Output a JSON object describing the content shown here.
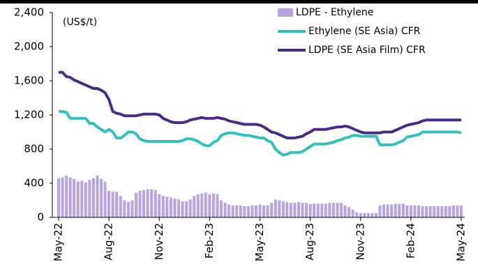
{
  "chart_data": {
    "type": "bar",
    "annotations": [
      "(US$/t)"
    ],
    "categories": [
      "May-22",
      null,
      null,
      null,
      null,
      null,
      null,
      null,
      null,
      null,
      null,
      null,
      null,
      "Aug-22",
      null,
      null,
      null,
      null,
      null,
      null,
      null,
      null,
      null,
      null,
      null,
      null,
      "Nov-22",
      null,
      null,
      null,
      null,
      null,
      null,
      null,
      null,
      null,
      null,
      null,
      null,
      "Feb-23",
      null,
      null,
      null,
      null,
      null,
      null,
      null,
      null,
      null,
      null,
      null,
      null,
      "May-23",
      null,
      null,
      null,
      null,
      null,
      null,
      null,
      null,
      null,
      null,
      null,
      null,
      "Aug-23",
      null,
      null,
      null,
      null,
      null,
      null,
      null,
      null,
      null,
      null,
      null,
      null,
      "Nov-23",
      null,
      null,
      null,
      null,
      null,
      null,
      null,
      null,
      null,
      null,
      null,
      null,
      "Feb-24",
      null,
      null,
      null,
      null,
      null,
      null,
      null,
      null,
      null,
      null,
      null,
      null,
      "May-24"
    ],
    "series": [
      {
        "name": "LDPE - Ethylene",
        "type": "bar",
        "color": "#b9a3e3",
        "values": [
          460,
          470,
          490,
          470,
          450,
          420,
          430,
          410,
          440,
          460,
          490,
          450,
          420,
          310,
          300,
          300,
          250,
          200,
          180,
          200,
          290,
          310,
          320,
          330,
          330,
          320,
          270,
          250,
          240,
          230,
          220,
          210,
          190,
          190,
          210,
          250,
          270,
          280,
          290,
          270,
          280,
          270,
          200,
          170,
          150,
          140,
          140,
          140,
          130,
          130,
          140,
          140,
          150,
          140,
          140,
          170,
          210,
          200,
          190,
          180,
          170,
          170,
          180,
          170,
          170,
          160,
          160,
          160,
          160,
          160,
          170,
          170,
          170,
          170,
          140,
          120,
          90,
          60,
          50,
          50,
          50,
          50,
          50,
          140,
          150,
          150,
          150,
          160,
          160,
          160,
          140,
          140,
          140,
          140,
          130,
          130,
          130,
          130,
          130,
          130,
          130,
          130,
          140,
          140,
          140
        ]
      },
      {
        "name": "Ethylene (SE Asia) CFR",
        "type": "line",
        "color": "#33bfc0",
        "values": [
          1240,
          1240,
          1230,
          1160,
          1160,
          1160,
          1160,
          1160,
          1100,
          1100,
          1060,
          1030,
          1000,
          1030,
          1000,
          930,
          930,
          960,
          1000,
          1000,
          980,
          920,
          900,
          890,
          890,
          890,
          890,
          890,
          890,
          890,
          890,
          890,
          900,
          920,
          920,
          910,
          890,
          860,
          840,
          840,
          880,
          900,
          960,
          980,
          990,
          990,
          980,
          970,
          960,
          960,
          950,
          940,
          930,
          930,
          900,
          880,
          800,
          760,
          730,
          740,
          760,
          760,
          760,
          770,
          800,
          830,
          860,
          860,
          860,
          860,
          870,
          880,
          900,
          910,
          930,
          940,
          960,
          960,
          950,
          950,
          950,
          950,
          950,
          850,
          850,
          850,
          850,
          860,
          880,
          900,
          940,
          950,
          960,
          970,
          1000,
          1000,
          1000,
          1000,
          1000,
          1000,
          1000,
          1000,
          1000,
          1000,
          990
        ]
      },
      {
        "name": "LDPE (SE Asia Film) CFR",
        "type": "line",
        "color": "#4b2a82",
        "values": [
          1700,
          1700,
          1650,
          1640,
          1610,
          1590,
          1570,
          1550,
          1530,
          1510,
          1510,
          1490,
          1460,
          1380,
          1240,
          1220,
          1210,
          1190,
          1190,
          1190,
          1190,
          1200,
          1210,
          1210,
          1210,
          1210,
          1200,
          1160,
          1140,
          1120,
          1110,
          1110,
          1110,
          1120,
          1140,
          1150,
          1160,
          1170,
          1160,
          1160,
          1160,
          1170,
          1160,
          1150,
          1130,
          1120,
          1110,
          1100,
          1090,
          1090,
          1090,
          1090,
          1080,
          1060,
          1030,
          1000,
          990,
          970,
          950,
          930,
          930,
          930,
          940,
          950,
          980,
          1000,
          1030,
          1030,
          1030,
          1030,
          1040,
          1050,
          1060,
          1060,
          1070,
          1060,
          1040,
          1020,
          1000,
          990,
          990,
          990,
          990,
          990,
          1000,
          1000,
          1000,
          1020,
          1040,
          1060,
          1080,
          1090,
          1100,
          1110,
          1130,
          1140,
          1140,
          1140,
          1140,
          1140,
          1140,
          1140,
          1140,
          1140,
          1140
        ]
      }
    ],
    "ylim": [
      0,
      2400
    ],
    "yticks": [
      0,
      400,
      800,
      {
        "value": 1200,
        "label": "1,200"
      },
      {
        "value": 1600,
        "label": "1,600"
      },
      {
        "value": 2000,
        "label": "2,000"
      },
      {
        "value": 2400,
        "label": "2,400"
      }
    ],
    "grid": false
  }
}
